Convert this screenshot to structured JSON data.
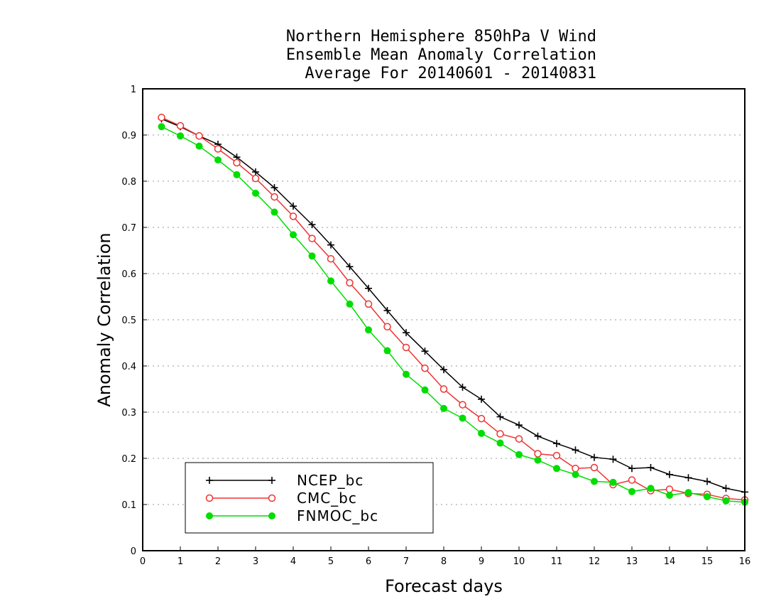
{
  "chart_data": {
    "type": "line",
    "title_lines": [
      "Northern Hemisphere 850hPa V Wind",
      "Ensemble Mean Anomaly Correlation",
      "Average For 20140601 - 20140831"
    ],
    "xlabel": "Forecast days",
    "ylabel": "Anomaly Correlation",
    "xlim": [
      0,
      16
    ],
    "ylim": [
      0,
      1
    ],
    "x_ticks": [
      0,
      1,
      2,
      3,
      4,
      5,
      6,
      7,
      8,
      9,
      10,
      11,
      12,
      13,
      14,
      15,
      16
    ],
    "y_ticks": [
      0,
      0.1,
      0.2,
      0.3,
      0.4,
      0.5,
      0.6,
      0.7,
      0.8,
      0.9,
      1
    ],
    "y_grid": true,
    "legend_position": "bottom-left",
    "x": [
      0.5,
      1,
      1.5,
      2,
      2.5,
      3,
      3.5,
      4,
      4.5,
      5,
      5.5,
      6,
      6.5,
      7,
      7.5,
      8,
      8.5,
      9,
      9.5,
      10,
      10.5,
      11,
      11.5,
      12,
      12.5,
      13,
      13.5,
      14,
      14.5,
      15,
      15.5,
      16
    ],
    "series": [
      {
        "name": "NCEP_bc",
        "color": "#000000",
        "marker": "plus",
        "values": [
          0.935,
          0.918,
          0.898,
          0.88,
          0.852,
          0.82,
          0.786,
          0.746,
          0.706,
          0.662,
          0.615,
          0.568,
          0.52,
          0.472,
          0.432,
          0.392,
          0.354,
          0.328,
          0.29,
          0.272,
          0.248,
          0.232,
          0.218,
          0.202,
          0.198,
          0.178,
          0.18,
          0.165,
          0.158,
          0.15,
          0.135,
          0.127
        ]
      },
      {
        "name": "CMC_bc",
        "color": "#ee3333",
        "marker": "open-circle",
        "values": [
          0.938,
          0.92,
          0.898,
          0.87,
          0.84,
          0.806,
          0.766,
          0.724,
          0.676,
          0.632,
          0.58,
          0.534,
          0.485,
          0.44,
          0.395,
          0.35,
          0.316,
          0.286,
          0.253,
          0.242,
          0.21,
          0.206,
          0.178,
          0.18,
          0.143,
          0.153,
          0.13,
          0.133,
          0.124,
          0.122,
          0.113,
          0.11
        ]
      },
      {
        "name": "FNMOC_bc",
        "color": "#00dd00",
        "marker": "filled-circle",
        "values": [
          0.918,
          0.898,
          0.876,
          0.846,
          0.814,
          0.774,
          0.733,
          0.684,
          0.638,
          0.584,
          0.534,
          0.478,
          0.433,
          0.382,
          0.348,
          0.308,
          0.287,
          0.254,
          0.233,
          0.208,
          0.196,
          0.178,
          0.165,
          0.15,
          0.148,
          0.128,
          0.135,
          0.12,
          0.126,
          0.117,
          0.108,
          0.105
        ]
      }
    ]
  }
}
